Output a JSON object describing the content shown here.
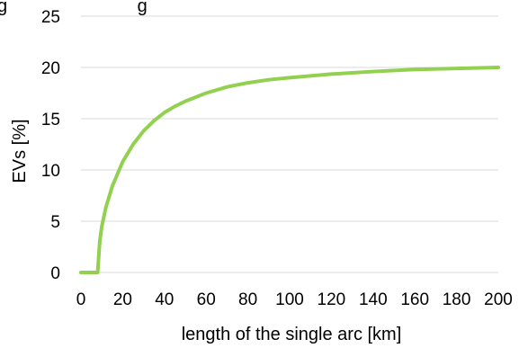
{
  "chart_data": {
    "type": "line",
    "title": "",
    "title_partial": "g                          g",
    "xlabel": "length of the single arc [km]",
    "ylabel": "EVs [%]",
    "xlim": [
      0,
      200
    ],
    "ylim": [
      0,
      25
    ],
    "x_ticks": [
      0,
      20,
      40,
      60,
      80,
      100,
      120,
      140,
      160,
      180,
      200
    ],
    "y_ticks": [
      0,
      5,
      10,
      15,
      20,
      25
    ],
    "grid": "horizontal",
    "legend": "none",
    "series": [
      {
        "color": "#92d050",
        "x": [
          0,
          5,
          8,
          9,
          10,
          12,
          15,
          20,
          25,
          30,
          35,
          40,
          45,
          50,
          60,
          70,
          80,
          90,
          100,
          120,
          140,
          160,
          180,
          200
        ],
        "y": [
          0,
          0,
          0,
          3.0,
          4.5,
          6.4,
          8.4,
          10.8,
          12.5,
          13.8,
          14.8,
          15.6,
          16.2,
          16.7,
          17.5,
          18.1,
          18.5,
          18.8,
          19.0,
          19.35,
          19.6,
          19.8,
          19.9,
          20.0
        ]
      }
    ]
  }
}
